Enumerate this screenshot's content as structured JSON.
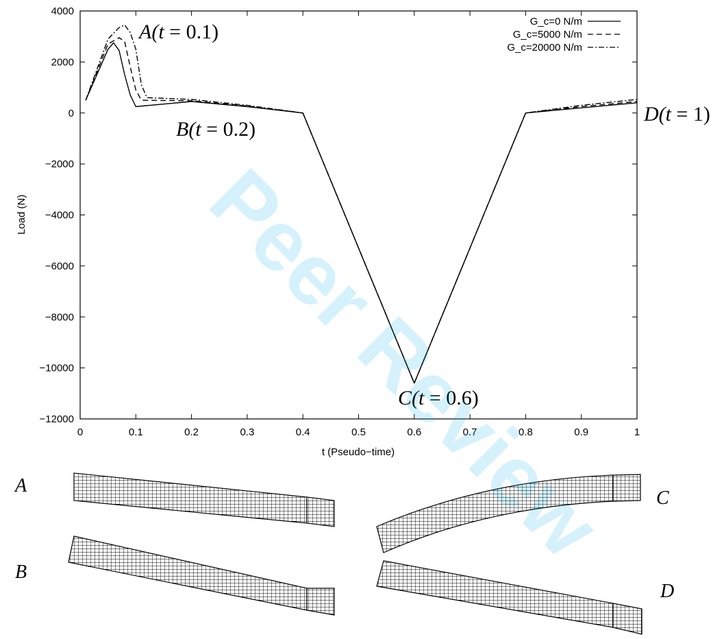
{
  "chart_data": {
    "type": "line",
    "xlabel": "t (Pseudo−time)",
    "ylabel": "Load (N)",
    "xlim": [
      0,
      1
    ],
    "ylim": [
      -12000,
      4000
    ],
    "x_ticks": [
      "0",
      "0.1",
      "0.2",
      "0.3",
      "0.4",
      "0.5",
      "0.6",
      "0.7",
      "0.8",
      "0.9",
      "1"
    ],
    "y_ticks": [
      "4000",
      "2000",
      "0",
      "−2000",
      "−4000",
      "−6000",
      "−8000",
      "−10000",
      "−12000"
    ],
    "legend_position": "top-right",
    "grid": false,
    "series": [
      {
        "name": "G_c=0 N/m",
        "dash": "solid",
        "x": [
          0.01,
          0.05,
          0.06,
          0.07,
          0.08,
          0.09,
          0.1,
          0.2,
          0.3,
          0.4,
          0.6,
          0.8,
          0.9,
          1.0
        ],
        "y": [
          500,
          2500,
          2750,
          2450,
          1500,
          700,
          250,
          450,
          250,
          0,
          -10600,
          0,
          200,
          400
        ]
      },
      {
        "name": "G_c=5000 N/m",
        "dash": "dashed",
        "x": [
          0.01,
          0.05,
          0.07,
          0.08,
          0.09,
          0.1,
          0.11,
          0.2,
          0.3,
          0.4,
          0.6,
          0.8,
          0.9,
          1.0
        ],
        "y": [
          500,
          2700,
          2950,
          2800,
          1800,
          900,
          500,
          480,
          270,
          0,
          -10600,
          0,
          250,
          450
        ]
      },
      {
        "name": "G_c=20000 N/m",
        "dash": "dashdot",
        "x": [
          0.01,
          0.05,
          0.07,
          0.08,
          0.09,
          0.1,
          0.11,
          0.12,
          0.2,
          0.3,
          0.4,
          0.6,
          0.8,
          0.9,
          1.0
        ],
        "y": [
          500,
          2900,
          3350,
          3450,
          3150,
          2500,
          1100,
          600,
          530,
          300,
          0,
          -10600,
          0,
          300,
          530
        ]
      }
    ],
    "annotations": [
      {
        "id": "A",
        "pre": "A(",
        "var": "t",
        "post": " = 0.1)"
      },
      {
        "id": "B",
        "pre": "B(",
        "var": "t",
        "post": " = 0.2)"
      },
      {
        "id": "C",
        "pre": "C(",
        "var": "t",
        "post": " = 0.6)"
      },
      {
        "id": "D",
        "pre": "D(",
        "var": "t",
        "post": " = 1)"
      }
    ]
  },
  "mesh_labels": {
    "A": "A",
    "B": "B",
    "C": "C",
    "D": "D"
  },
  "watermark": "Peer Review",
  "colors": {
    "line": "#000000",
    "watermark": "#00aeef"
  }
}
